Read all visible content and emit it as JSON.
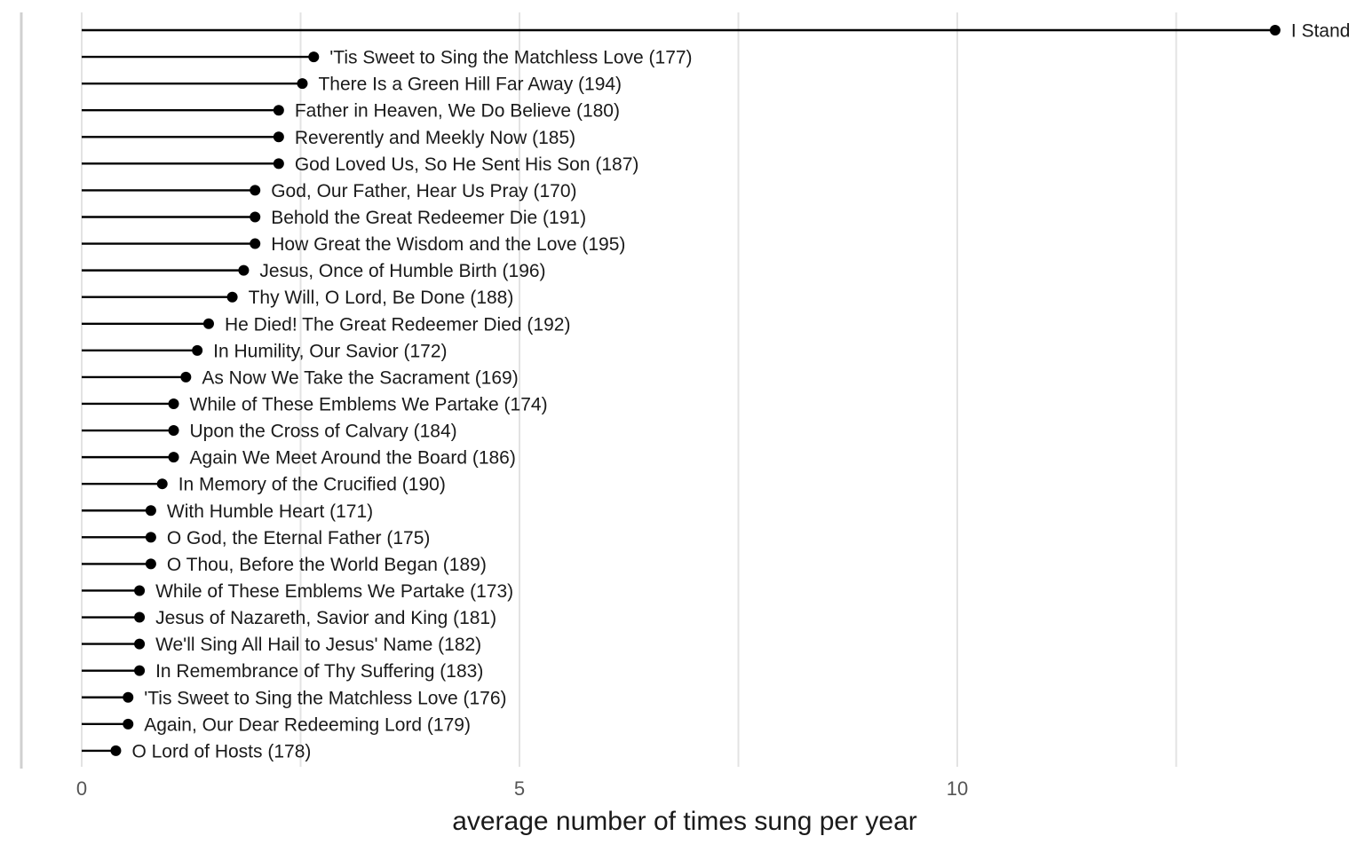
{
  "chart_data": {
    "type": "lollipop",
    "xlabel": "average number of times sung per year",
    "xlim": [
      0,
      14.0
    ],
    "xticks": [
      0,
      5,
      10
    ],
    "xtick_labels": [
      "0",
      "5",
      "10"
    ],
    "minor_gridlines": [
      2.5,
      7.5,
      12.5
    ],
    "grid": true,
    "items": [
      {
        "label": "I Stand",
        "value": 13.63
      },
      {
        "label": "'Tis Sweet to Sing the Matchless Love (177)",
        "value": 2.65
      },
      {
        "label": "There Is a Green Hill Far Away (194)",
        "value": 2.52
      },
      {
        "label": "Father in Heaven, We Do Believe (180)",
        "value": 2.25
      },
      {
        "label": "Reverently and Meekly Now (185)",
        "value": 2.25
      },
      {
        "label": "God Loved Us, So He Sent His Son (187)",
        "value": 2.25
      },
      {
        "label": "God, Our Father, Hear Us Pray (170)",
        "value": 1.98
      },
      {
        "label": "Behold the Great Redeemer Die (191)",
        "value": 1.98
      },
      {
        "label": "How Great the Wisdom and the Love (195)",
        "value": 1.98
      },
      {
        "label": "Jesus, Once of Humble Birth (196)",
        "value": 1.85
      },
      {
        "label": "Thy Will, O Lord, Be Done (188)",
        "value": 1.72
      },
      {
        "label": "He Died! The Great Redeemer Died (192)",
        "value": 1.45
      },
      {
        "label": "In Humility, Our Savior (172)",
        "value": 1.32
      },
      {
        "label": "As Now We Take the Sacrament (169)",
        "value": 1.19
      },
      {
        "label": "While of These Emblems We Partake (174)",
        "value": 1.05
      },
      {
        "label": "Upon the Cross of Calvary (184)",
        "value": 1.05
      },
      {
        "label": "Again We Meet Around the Board (186)",
        "value": 1.05
      },
      {
        "label": "In Memory of the Crucified (190)",
        "value": 0.92
      },
      {
        "label": "With Humble Heart (171)",
        "value": 0.79
      },
      {
        "label": "O God, the Eternal Father (175)",
        "value": 0.79
      },
      {
        "label": "O Thou, Before the World Began (189)",
        "value": 0.79
      },
      {
        "label": "While of These Emblems We Partake (173)",
        "value": 0.66
      },
      {
        "label": "Jesus of Nazareth, Savior and King (181)",
        "value": 0.66
      },
      {
        "label": "We'll Sing All Hail to Jesus' Name (182)",
        "value": 0.66
      },
      {
        "label": "In Remembrance of Thy Suffering (183)",
        "value": 0.66
      },
      {
        "label": "'Tis Sweet to Sing the Matchless Love (176)",
        "value": 0.53
      },
      {
        "label": "Again, Our Dear Redeeming Lord (179)",
        "value": 0.53
      },
      {
        "label": "O Lord of Hosts (178)",
        "value": 0.39
      }
    ]
  }
}
